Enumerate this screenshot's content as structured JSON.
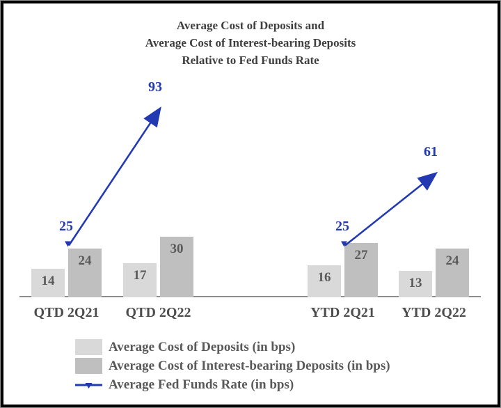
{
  "title": {
    "lines": [
      "Average Cost of Deposits and",
      "Average Cost of Interest-bearing Deposits",
      "Relative to Fed Funds Rate"
    ]
  },
  "colors": {
    "deposits_bar": "#d9d9d9",
    "interest_bearing_bar": "#bfbfbf",
    "fed_funds_line": "#2239b2",
    "axis_line": "#8c8c8c",
    "title_text": "#3e3e3e",
    "label_text": "#595959"
  },
  "legend": {
    "items": [
      {
        "label": "Average Cost of Deposits (in bps)",
        "swatch": "light-gray-box"
      },
      {
        "label": "Average Cost of Interest-bearing Deposits (in bps)",
        "swatch": "dark-gray-box"
      },
      {
        "label": "Average Fed Funds Rate (in bps)",
        "swatch": "blue-line-with-triangle-marker"
      }
    ]
  },
  "chart_data": {
    "type": "bar",
    "title": "Average Cost of Deposits and Average Cost of Interest-bearing Deposits Relative to Fed Funds Rate",
    "categories": [
      "QTD 2Q21",
      "QTD 2Q22",
      "YTD 2Q21",
      "YTD 2Q22"
    ],
    "series": [
      {
        "name": "Average Cost of Deposits (in bps)",
        "type": "bar",
        "values": [
          14,
          17,
          16,
          13
        ]
      },
      {
        "name": "Average Cost of Interest-bearing Deposits (in bps)",
        "type": "bar",
        "values": [
          24,
          30,
          27,
          24
        ]
      },
      {
        "name": "Average Fed Funds Rate (in bps)",
        "type": "line",
        "segments": [
          {
            "from_category": "QTD 2Q21",
            "from_value": 25,
            "to_category": "QTD 2Q22",
            "to_value": 93
          },
          {
            "from_category": "YTD 2Q21",
            "from_value": 25,
            "to_category": "YTD 2Q22",
            "to_value": 61
          }
        ]
      }
    ],
    "xlabel": "",
    "ylabel": "",
    "value_unit": "bps",
    "data_labels": true,
    "gridlines": false,
    "y_axis_visible": false,
    "legend_position": "bottom-left"
  }
}
